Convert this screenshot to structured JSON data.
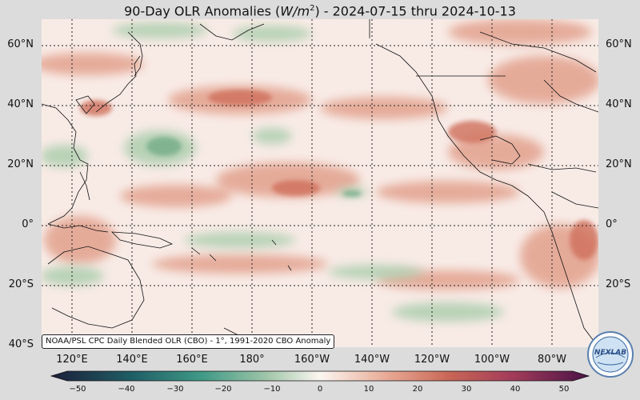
{
  "map": {
    "title_prefix": "90-Day OLR Anomalies (",
    "title_unit_base": "W/m",
    "title_unit_exp": "2",
    "title_suffix": ") - 2024-07-15 thru 2024-10-13",
    "lat_labels": [
      "60°N",
      "40°N",
      "20°N",
      "0°",
      "20°S",
      "40°S"
    ],
    "lon_labels": [
      "120°E",
      "140°E",
      "160°E",
      "180°",
      "160°W",
      "140°W",
      "120°W",
      "100°W",
      "80°W"
    ],
    "caption": "NOAA/PSL CPC Daily Blended OLR (CBO) - 1°, 1991-2020 CBO Anomaly",
    "colorbar": {
      "ticks": [
        "−50",
        "−40",
        "−30",
        "−20",
        "−10",
        "0",
        "10",
        "20",
        "30",
        "40",
        "50"
      ],
      "min": -50,
      "max": 50,
      "colors": {
        "neg_extreme": "#1b1f3a",
        "neg_mid": "#2f7f7a",
        "neg_low": "#7fb08c",
        "neutral": "#fbf6f1",
        "pos_low": "#e7a08c",
        "pos_mid": "#c45b4a",
        "pos_extreme": "#5a1650"
      }
    },
    "logo_text": "NEXLAB",
    "colors": {
      "background": "#dcdcdc",
      "map_base": "#f8ebe6",
      "positive_anomaly": "#e3a38f",
      "negative_anomaly": "#9fc8a6",
      "grid": "#222222"
    }
  }
}
